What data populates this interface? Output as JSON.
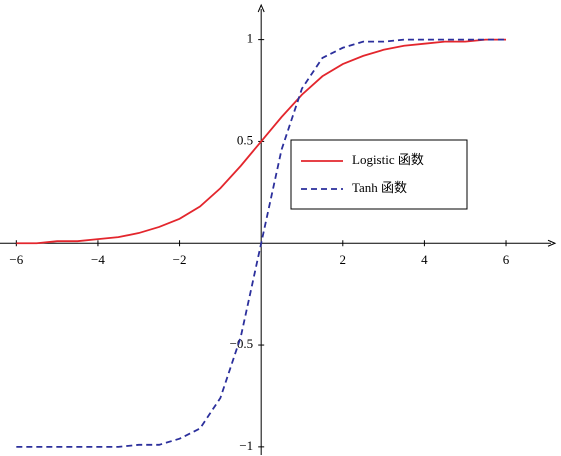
{
  "chart_data": {
    "type": "line",
    "x": [
      -6,
      -5.5,
      -5,
      -4.5,
      -4,
      -3.5,
      -3,
      -2.5,
      -2,
      -1.5,
      -1,
      -0.5,
      0,
      0.5,
      1,
      1.5,
      2,
      2.5,
      3,
      3.5,
      4,
      4.5,
      5,
      5.5,
      6
    ],
    "series": [
      {
        "name": "Logistic 函数",
        "color": "#e3262d",
        "dash": false,
        "values": [
          0.0,
          0.0,
          0.01,
          0.01,
          0.02,
          0.03,
          0.05,
          0.08,
          0.12,
          0.18,
          0.27,
          0.38,
          0.5,
          0.62,
          0.73,
          0.82,
          0.88,
          0.92,
          0.95,
          0.97,
          0.98,
          0.99,
          0.99,
          1.0,
          1.0
        ]
      },
      {
        "name": "Tanh 函数",
        "color": "#2b2f9c",
        "dash": true,
        "values": [
          -1,
          -1,
          -1,
          -1,
          -1,
          -1,
          -0.99,
          -0.99,
          -0.96,
          -0.91,
          -0.76,
          -0.46,
          0,
          0.46,
          0.76,
          0.91,
          0.96,
          0.99,
          0.99,
          1,
          1,
          1,
          1,
          1,
          1
        ]
      }
    ],
    "xlim": [
      -6.4,
      7.2
    ],
    "ylim": [
      -1.04,
      1.17
    ],
    "xticks": [
      {
        "value": -6,
        "label": "−6"
      },
      {
        "value": -4,
        "label": "−4"
      },
      {
        "value": -2,
        "label": "−2"
      },
      2,
      4,
      6
    ],
    "yticks": [
      {
        "value": -1,
        "label": "−1"
      },
      {
        "value": -0.5,
        "label": "−0.5"
      },
      0.5,
      1
    ]
  }
}
